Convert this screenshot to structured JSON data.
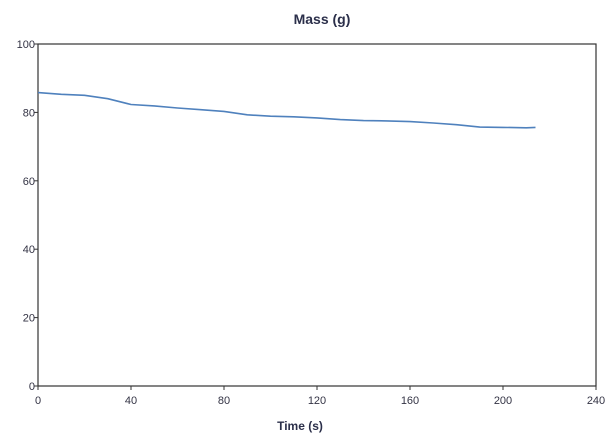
{
  "chart_data": {
    "type": "line",
    "title": "Mass (g)",
    "xlabel": "Time (s)",
    "ylabel": "",
    "xlim": [
      0,
      240
    ],
    "ylim": [
      0,
      100
    ],
    "x_ticks": [
      "0",
      "40",
      "80",
      "120",
      "160",
      "200",
      "240"
    ],
    "y_ticks": [
      "0",
      "20",
      "40",
      "60",
      "80",
      "100"
    ],
    "grid": false,
    "legend": "none",
    "series": [
      {
        "color": "#4f81bd",
        "x": [
          0,
          10,
          20,
          30,
          40,
          50,
          60,
          70,
          80,
          90,
          100,
          110,
          120,
          130,
          140,
          150,
          160,
          170,
          180,
          190,
          200,
          210,
          214
        ],
        "y": [
          85.8,
          85.3,
          85.0,
          84.0,
          82.3,
          81.9,
          81.3,
          80.8,
          80.3,
          79.3,
          78.9,
          78.7,
          78.4,
          77.9,
          77.6,
          77.5,
          77.3,
          76.9,
          76.4,
          75.7,
          75.6,
          75.5,
          75.6
        ]
      }
    ]
  }
}
